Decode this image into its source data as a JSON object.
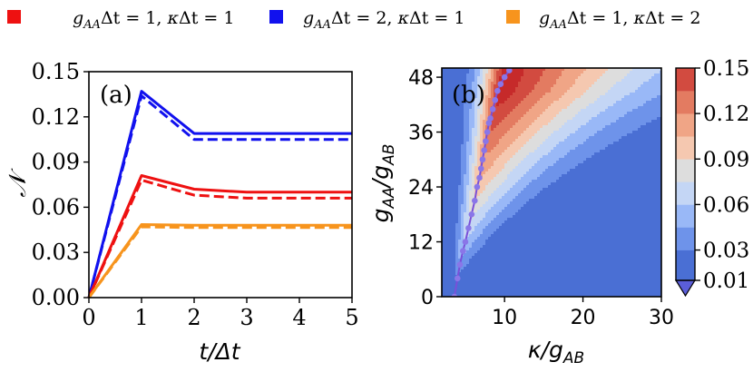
{
  "legend": [
    {
      "id": "red",
      "color": "#ee1111",
      "g": "1",
      "k": "1"
    },
    {
      "id": "blue",
      "color": "#1111ee",
      "g": "2",
      "k": "1"
    },
    {
      "id": "orange",
      "color": "#f7941d",
      "g": "1",
      "k": "2"
    }
  ],
  "legend_text": {
    "g": "g",
    "sub_aa": "AA",
    "delta_t": "Δt",
    "kappa": "κ"
  },
  "chart_data": [
    {
      "type": "line",
      "panel_label": "(a)",
      "xlabel": "t/Δt",
      "ylabel": "𝒩",
      "xlim": [
        0,
        5
      ],
      "ylim": [
        0,
        0.15
      ],
      "xticks": [
        "0",
        "1",
        "2",
        "3",
        "4",
        "5"
      ],
      "yticks": [
        "0.00",
        "0.03",
        "0.06",
        "0.09",
        "0.12",
        "0.15"
      ],
      "x": [
        0,
        1,
        2,
        3,
        4,
        5
      ],
      "series": [
        {
          "name": "blue solid",
          "color": "#1111ee",
          "dash": false,
          "values": [
            0,
            0.137,
            0.109,
            0.109,
            0.109,
            0.109
          ]
        },
        {
          "name": "blue dashed",
          "color": "#1111ee",
          "dash": true,
          "values": [
            0,
            0.134,
            0.105,
            0.105,
            0.105,
            0.105
          ]
        },
        {
          "name": "red solid",
          "color": "#ee1111",
          "dash": false,
          "values": [
            0,
            0.081,
            0.072,
            0.07,
            0.07,
            0.07
          ]
        },
        {
          "name": "red dashed",
          "color": "#ee1111",
          "dash": true,
          "values": [
            0,
            0.078,
            0.068,
            0.066,
            0.066,
            0.066
          ]
        },
        {
          "name": "orange solid",
          "color": "#f7941d",
          "dash": false,
          "values": [
            0,
            0.0485,
            0.048,
            0.048,
            0.048,
            0.048
          ]
        },
        {
          "name": "orange dashed",
          "color": "#f7941d",
          "dash": true,
          "values": [
            0,
            0.047,
            0.0465,
            0.0465,
            0.0465,
            0.0465
          ]
        }
      ]
    },
    {
      "type": "heatmap",
      "panel_label": "(b)",
      "xlabel_main": "κ/g",
      "xlabel_sub": "AB",
      "ylabel_num": "g",
      "ylabel_num_sub": "AA",
      "ylabel_den": "g",
      "ylabel_den_sub": "AB",
      "xlim": [
        2,
        30
      ],
      "ylim": [
        0,
        50
      ],
      "xticks": [
        "10",
        "20",
        "30"
      ],
      "yticks": [
        "0",
        "12",
        "24",
        "36",
        "48"
      ],
      "colorbar_ticks": [
        "0.01",
        "0.03",
        "0.06",
        "0.09",
        "0.12",
        "0.15"
      ],
      "levels": [
        0.01,
        0.03,
        0.045,
        0.06,
        0.075,
        0.09,
        0.105,
        0.12,
        0.135,
        0.15
      ],
      "level_colors": [
        "#4a6fd4",
        "#6e93ea",
        "#99b8f7",
        "#c4d6f5",
        "#dddddd",
        "#f5c8b0",
        "#f0a586",
        "#e37b61",
        "#d24b40",
        "#c62a2a"
      ],
      "optimal_points": [
        [
          3.6,
          0
        ],
        [
          4.0,
          4
        ],
        [
          4.3,
          7
        ],
        [
          4.7,
          10
        ],
        [
          5.0,
          12
        ],
        [
          5.4,
          15
        ],
        [
          5.8,
          18
        ],
        [
          6.2,
          21
        ],
        [
          6.5,
          24
        ],
        [
          6.8,
          26
        ],
        [
          7.0,
          28
        ],
        [
          7.2,
          30
        ],
        [
          7.4,
          32
        ],
        [
          7.6,
          34
        ],
        [
          7.8,
          36
        ],
        [
          8.0,
          38
        ],
        [
          8.2,
          39
        ],
        [
          8.5,
          41
        ],
        [
          8.8,
          43
        ],
        [
          9.1,
          45
        ],
        [
          9.5,
          46.5
        ],
        [
          10.0,
          48
        ],
        [
          10.6,
          49.5
        ]
      ],
      "optimal_color": "#8a76e8"
    }
  ]
}
